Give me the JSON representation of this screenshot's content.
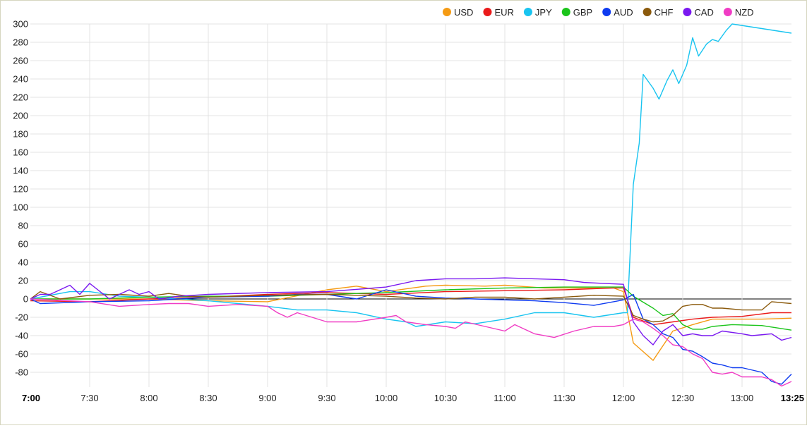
{
  "chart_data": {
    "type": "line",
    "title": "",
    "xlabel": "",
    "ylabel": "",
    "ylim": [
      -90,
      300
    ],
    "y_ticks": [
      300,
      280,
      260,
      240,
      220,
      200,
      180,
      160,
      140,
      120,
      100,
      80,
      60,
      40,
      20,
      0,
      -20,
      -40,
      -60,
      -80
    ],
    "x_ticks": [
      "7:00",
      "7:30",
      "8:00",
      "8:30",
      "9:00",
      "9:30",
      "10:00",
      "10:30",
      "11:00",
      "11:30",
      "12:00",
      "12:30",
      "13:00",
      "13:25"
    ],
    "bold_x_ticks": [
      "7:00",
      "13:25"
    ],
    "x_start": "7:00",
    "x_end": "13:25",
    "grid": true,
    "legend_position": "top-right",
    "series": [
      {
        "name": "USD",
        "color": "#f59b14",
        "points": [
          [
            "7:00",
            0
          ],
          [
            "7:30",
            0
          ],
          [
            "8:00",
            0
          ],
          [
            "8:30",
            -2
          ],
          [
            "9:00",
            -3
          ],
          [
            "9:30",
            10
          ],
          [
            "9:45",
            14
          ],
          [
            "10:00",
            8
          ],
          [
            "10:20",
            14
          ],
          [
            "10:30",
            15
          ],
          [
            "10:50",
            14
          ],
          [
            "11:00",
            15
          ],
          [
            "11:20",
            12
          ],
          [
            "11:40",
            12
          ],
          [
            "11:55",
            12
          ],
          [
            "12:00",
            8
          ],
          [
            "12:05",
            -48
          ],
          [
            "12:15",
            -67
          ],
          [
            "12:25",
            -35
          ],
          [
            "12:35",
            -28
          ],
          [
            "12:45",
            -22
          ],
          [
            "13:00",
            -22
          ],
          [
            "13:10",
            -22
          ],
          [
            "13:25",
            -21
          ]
        ]
      },
      {
        "name": "EUR",
        "color": "#ea1a1a",
        "points": [
          [
            "7:00",
            -2
          ],
          [
            "7:30",
            -3
          ],
          [
            "8:00",
            0
          ],
          [
            "8:30",
            2
          ],
          [
            "9:00",
            5
          ],
          [
            "9:30",
            7
          ],
          [
            "10:00",
            5
          ],
          [
            "10:30",
            8
          ],
          [
            "11:00",
            9
          ],
          [
            "11:30",
            10
          ],
          [
            "11:55",
            12
          ],
          [
            "12:00",
            12
          ],
          [
            "12:05",
            -20
          ],
          [
            "12:15",
            -28
          ],
          [
            "12:25",
            -25
          ],
          [
            "12:35",
            -22
          ],
          [
            "12:45",
            -20
          ],
          [
            "13:00",
            -19
          ],
          [
            "13:15",
            -15
          ],
          [
            "13:25",
            -15
          ]
        ]
      },
      {
        "name": "JPY",
        "color": "#18c4f0",
        "points": [
          [
            "7:00",
            0
          ],
          [
            "7:20",
            8
          ],
          [
            "7:30",
            8
          ],
          [
            "7:45",
            3
          ],
          [
            "8:00",
            2
          ],
          [
            "8:30",
            -2
          ],
          [
            "8:45",
            -5
          ],
          [
            "9:00",
            -8
          ],
          [
            "9:15",
            -12
          ],
          [
            "9:30",
            -12
          ],
          [
            "9:45",
            -15
          ],
          [
            "10:00",
            -22
          ],
          [
            "10:10",
            -25
          ],
          [
            "10:15",
            -30
          ],
          [
            "10:30",
            -25
          ],
          [
            "10:45",
            -27
          ],
          [
            "11:00",
            -22
          ],
          [
            "11:15",
            -15
          ],
          [
            "11:30",
            -15
          ],
          [
            "11:45",
            -20
          ],
          [
            "12:00",
            -15
          ],
          [
            "12:02",
            -15
          ],
          [
            "12:05",
            125
          ],
          [
            "12:08",
            170
          ],
          [
            "12:10",
            245
          ],
          [
            "12:15",
            230
          ],
          [
            "12:18",
            218
          ],
          [
            "12:22",
            238
          ],
          [
            "12:25",
            250
          ],
          [
            "12:28",
            235
          ],
          [
            "12:32",
            255
          ],
          [
            "12:35",
            285
          ],
          [
            "12:38",
            265
          ],
          [
            "12:42",
            278
          ],
          [
            "12:45",
            283
          ],
          [
            "12:48",
            281
          ],
          [
            "12:52",
            293
          ],
          [
            "12:55",
            300
          ],
          [
            "13:25",
            290
          ]
        ]
      },
      {
        "name": "GBP",
        "color": "#1bc41b",
        "points": [
          [
            "7:00",
            0
          ],
          [
            "7:30",
            0
          ],
          [
            "8:00",
            2
          ],
          [
            "8:30",
            3
          ],
          [
            "9:00",
            3
          ],
          [
            "9:30",
            5
          ],
          [
            "10:00",
            7
          ],
          [
            "10:30",
            10
          ],
          [
            "11:00",
            12
          ],
          [
            "11:30",
            13
          ],
          [
            "12:00",
            13
          ],
          [
            "12:05",
            3
          ],
          [
            "12:15",
            -10
          ],
          [
            "12:20",
            -18
          ],
          [
            "12:25",
            -16
          ],
          [
            "12:30",
            -28
          ],
          [
            "12:35",
            -33
          ],
          [
            "12:40",
            -33
          ],
          [
            "12:45",
            -30
          ],
          [
            "12:55",
            -28
          ],
          [
            "13:10",
            -29
          ],
          [
            "13:25",
            -34
          ]
        ]
      },
      {
        "name": "AUD",
        "color": "#0e3bf0",
        "points": [
          [
            "7:00",
            0
          ],
          [
            "7:05",
            -5
          ],
          [
            "7:30",
            -3
          ],
          [
            "8:00",
            -2
          ],
          [
            "8:30",
            2
          ],
          [
            "9:00",
            3
          ],
          [
            "9:15",
            5
          ],
          [
            "9:30",
            5
          ],
          [
            "9:45",
            0
          ],
          [
            "10:00",
            10
          ],
          [
            "10:15",
            3
          ],
          [
            "10:30",
            1
          ],
          [
            "10:45",
            0
          ],
          [
            "11:00",
            -1
          ],
          [
            "11:15",
            -2
          ],
          [
            "11:30",
            -4
          ],
          [
            "11:45",
            -7
          ],
          [
            "11:55",
            -3
          ],
          [
            "12:00",
            -1
          ],
          [
            "12:05",
            5
          ],
          [
            "12:10",
            -22
          ],
          [
            "12:15",
            -28
          ],
          [
            "12:20",
            -38
          ],
          [
            "12:25",
            -42
          ],
          [
            "12:30",
            -55
          ],
          [
            "12:35",
            -57
          ],
          [
            "12:40",
            -63
          ],
          [
            "12:45",
            -70
          ],
          [
            "12:50",
            -72
          ],
          [
            "12:55",
            -75
          ],
          [
            "13:00",
            -75
          ],
          [
            "13:10",
            -80
          ],
          [
            "13:15",
            -90
          ],
          [
            "13:20",
            -93
          ],
          [
            "13:25",
            -82
          ]
        ]
      },
      {
        "name": "CHF",
        "color": "#8b5a0c",
        "points": [
          [
            "7:00",
            0
          ],
          [
            "7:05",
            8
          ],
          [
            "7:15",
            0
          ],
          [
            "7:30",
            4
          ],
          [
            "7:45",
            5
          ],
          [
            "8:00",
            3
          ],
          [
            "8:10",
            6
          ],
          [
            "8:20",
            3
          ],
          [
            "8:30",
            2
          ],
          [
            "8:45",
            3
          ],
          [
            "9:00",
            4
          ],
          [
            "9:30",
            5
          ],
          [
            "10:00",
            3
          ],
          [
            "10:15",
            1
          ],
          [
            "10:30",
            0
          ],
          [
            "10:45",
            2
          ],
          [
            "11:00",
            2
          ],
          [
            "11:15",
            0
          ],
          [
            "11:30",
            2
          ],
          [
            "11:45",
            4
          ],
          [
            "12:00",
            3
          ],
          [
            "12:05",
            -18
          ],
          [
            "12:10",
            -22
          ],
          [
            "12:15",
            -25
          ],
          [
            "12:20",
            -24
          ],
          [
            "12:25",
            -18
          ],
          [
            "12:30",
            -8
          ],
          [
            "12:35",
            -6
          ],
          [
            "12:40",
            -6
          ],
          [
            "12:45",
            -10
          ],
          [
            "12:50",
            -10
          ],
          [
            "13:00",
            -12
          ],
          [
            "13:10",
            -12
          ],
          [
            "13:15",
            -3
          ],
          [
            "13:25",
            -5
          ]
        ]
      },
      {
        "name": "CAD",
        "color": "#7a18f0",
        "points": [
          [
            "7:00",
            0
          ],
          [
            "7:05",
            5
          ],
          [
            "7:10",
            5
          ],
          [
            "7:15",
            10
          ],
          [
            "7:20",
            15
          ],
          [
            "7:25",
            5
          ],
          [
            "7:30",
            17
          ],
          [
            "7:40",
            0
          ],
          [
            "7:45",
            5
          ],
          [
            "7:50",
            10
          ],
          [
            "7:55",
            5
          ],
          [
            "8:00",
            8
          ],
          [
            "8:05",
            0
          ],
          [
            "8:15",
            3
          ],
          [
            "8:30",
            5
          ],
          [
            "9:00",
            7
          ],
          [
            "9:30",
            8
          ],
          [
            "10:00",
            13
          ],
          [
            "10:15",
            20
          ],
          [
            "10:30",
            22
          ],
          [
            "10:45",
            22
          ],
          [
            "11:00",
            23
          ],
          [
            "11:15",
            22
          ],
          [
            "11:30",
            21
          ],
          [
            "11:40",
            18
          ],
          [
            "11:50",
            17
          ],
          [
            "12:00",
            16
          ],
          [
            "12:05",
            -25
          ],
          [
            "12:10",
            -40
          ],
          [
            "12:15",
            -50
          ],
          [
            "12:20",
            -35
          ],
          [
            "12:25",
            -28
          ],
          [
            "12:30",
            -40
          ],
          [
            "12:35",
            -38
          ],
          [
            "12:40",
            -40
          ],
          [
            "12:45",
            -40
          ],
          [
            "12:50",
            -35
          ],
          [
            "13:00",
            -38
          ],
          [
            "13:05",
            -40
          ],
          [
            "13:15",
            -38
          ],
          [
            "13:20",
            -45
          ],
          [
            "13:25",
            -42
          ]
        ]
      },
      {
        "name": "NZD",
        "color": "#f03cc4",
        "points": [
          [
            "7:00",
            0
          ],
          [
            "7:30",
            -3
          ],
          [
            "7:45",
            -8
          ],
          [
            "8:00",
            -6
          ],
          [
            "8:10",
            -5
          ],
          [
            "8:20",
            -5
          ],
          [
            "8:30",
            -8
          ],
          [
            "8:45",
            -6
          ],
          [
            "9:00",
            -8
          ],
          [
            "9:05",
            -15
          ],
          [
            "9:10",
            -20
          ],
          [
            "9:15",
            -15
          ],
          [
            "9:30",
            -25
          ],
          [
            "9:45",
            -25
          ],
          [
            "10:00",
            -20
          ],
          [
            "10:05",
            -18
          ],
          [
            "10:10",
            -25
          ],
          [
            "10:20",
            -28
          ],
          [
            "10:30",
            -30
          ],
          [
            "10:35",
            -32
          ],
          [
            "10:40",
            -25
          ],
          [
            "10:50",
            -30
          ],
          [
            "11:00",
            -35
          ],
          [
            "11:05",
            -28
          ],
          [
            "11:15",
            -38
          ],
          [
            "11:25",
            -42
          ],
          [
            "11:35",
            -35
          ],
          [
            "11:45",
            -30
          ],
          [
            "11:55",
            -30
          ],
          [
            "12:00",
            -28
          ],
          [
            "12:05",
            -22
          ],
          [
            "12:10",
            -25
          ],
          [
            "12:15",
            -32
          ],
          [
            "12:20",
            -40
          ],
          [
            "12:25",
            -50
          ],
          [
            "12:30",
            -52
          ],
          [
            "12:35",
            -60
          ],
          [
            "12:40",
            -65
          ],
          [
            "12:45",
            -80
          ],
          [
            "12:50",
            -82
          ],
          [
            "12:55",
            -80
          ],
          [
            "13:00",
            -85
          ],
          [
            "13:10",
            -85
          ],
          [
            "13:15",
            -88
          ],
          [
            "13:20",
            -95
          ],
          [
            "13:25",
            -90
          ]
        ]
      }
    ]
  }
}
